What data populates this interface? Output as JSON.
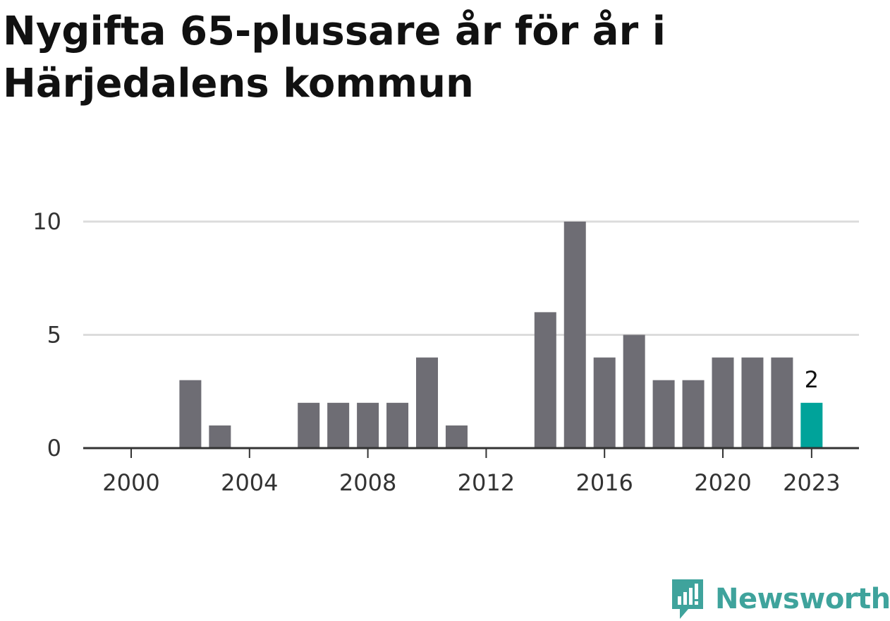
{
  "title": "Nygifta 65-plussare år för år i Härjedalens kommun",
  "brand": {
    "name": "Newsworthy",
    "icon": "newsworthy-logo-icon",
    "color": "#3fa39c"
  },
  "colors": {
    "bar": "#6e6d74",
    "highlight": "#00a39a",
    "grid": "#dcdcdc",
    "axis": "#333333"
  },
  "chart_data": {
    "type": "bar",
    "x": [
      2000,
      2001,
      2002,
      2003,
      2004,
      2005,
      2006,
      2007,
      2008,
      2009,
      2010,
      2011,
      2012,
      2013,
      2014,
      2015,
      2016,
      2017,
      2018,
      2019,
      2020,
      2021,
      2022,
      2023
    ],
    "values": [
      0,
      0,
      3,
      1,
      0,
      0,
      2,
      2,
      2,
      2,
      4,
      1,
      0,
      0,
      6,
      10,
      4,
      5,
      3,
      3,
      4,
      4,
      4,
      2
    ],
    "highlight": 2023,
    "highlight_label": "2",
    "x_ticks": [
      "2000",
      "2004",
      "2008",
      "2012",
      "2016",
      "2020",
      "2023"
    ],
    "y_ticks": [
      "0",
      "5",
      "10"
    ],
    "ylim": [
      0,
      10
    ],
    "grid": true,
    "title": "Nygifta 65-plussare år för år i Härjedalens kommun",
    "xlabel": "",
    "ylabel": ""
  }
}
